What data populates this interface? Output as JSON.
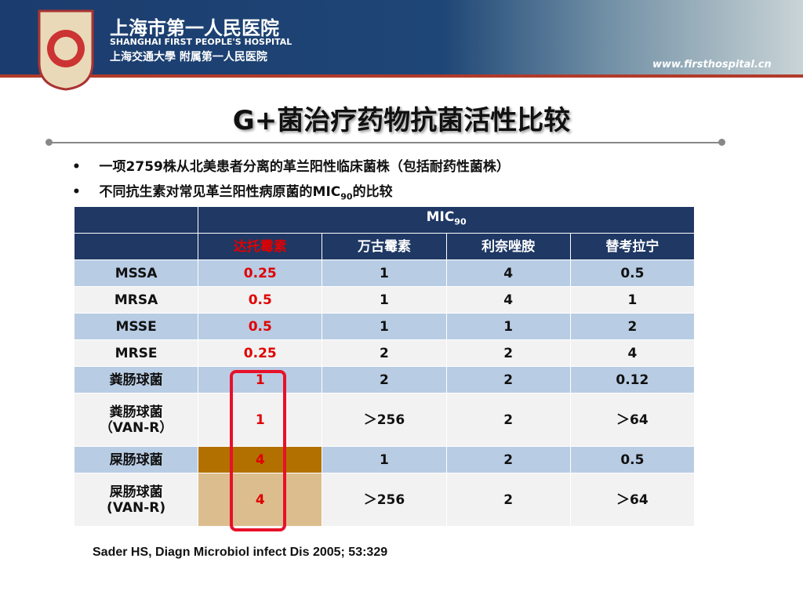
{
  "header": {
    "hospital_cn": "上海市第一人民医院",
    "hospital_en": "SHANGHAI FIRST PEOPLE'S HOSPITAL",
    "affiliation_cn": "上海交通大學 附属第一人民医院",
    "website": "www.firsthospital.cn"
  },
  "title": "G+菌治疗药物抗菌活性比较",
  "bullets": [
    {
      "text": "一项2759株从北美患者分离的革兰阳性临床菌株（包括耐药性菌株）"
    },
    {
      "text": "不同抗生素对常见革兰阳性病原菌的MIC",
      "sub": "90",
      "tail": "的比较"
    }
  ],
  "table": {
    "group_header": {
      "text": "MIC",
      "sub": "90"
    },
    "columns": [
      "达托霉素",
      "万古霉素",
      "利奈唑胺",
      "替考拉宁"
    ],
    "rows": [
      {
        "label": [
          "MSSA"
        ],
        "values": [
          "0.25",
          "1",
          "4",
          "0.5"
        ]
      },
      {
        "label": [
          "MRSA"
        ],
        "values": [
          "0.5",
          "1",
          "4",
          "1"
        ]
      },
      {
        "label": [
          "MSSE"
        ],
        "values": [
          "0.5",
          "1",
          "1",
          "2"
        ]
      },
      {
        "label": [
          "MRSE"
        ],
        "values": [
          "0.25",
          "2",
          "2",
          "4"
        ]
      },
      {
        "label": [
          "粪肠球菌"
        ],
        "values": [
          "1",
          "2",
          "2",
          "0.12"
        ]
      },
      {
        "label": [
          "粪肠球菌",
          "（VAN-R）"
        ],
        "values": [
          "1",
          "＞256",
          "2",
          "＞64"
        ]
      },
      {
        "label": [
          "屎肠球菌"
        ],
        "values": [
          "4",
          "1",
          "2",
          "0.5"
        ]
      },
      {
        "label": [
          "屎肠球菌",
          "(VAN-R)"
        ],
        "values": [
          "4",
          "＞256",
          "2",
          "＞64"
        ]
      }
    ]
  },
  "citation": "Sader HS, Diagn Microbiol infect Dis 2005; 53:329"
}
